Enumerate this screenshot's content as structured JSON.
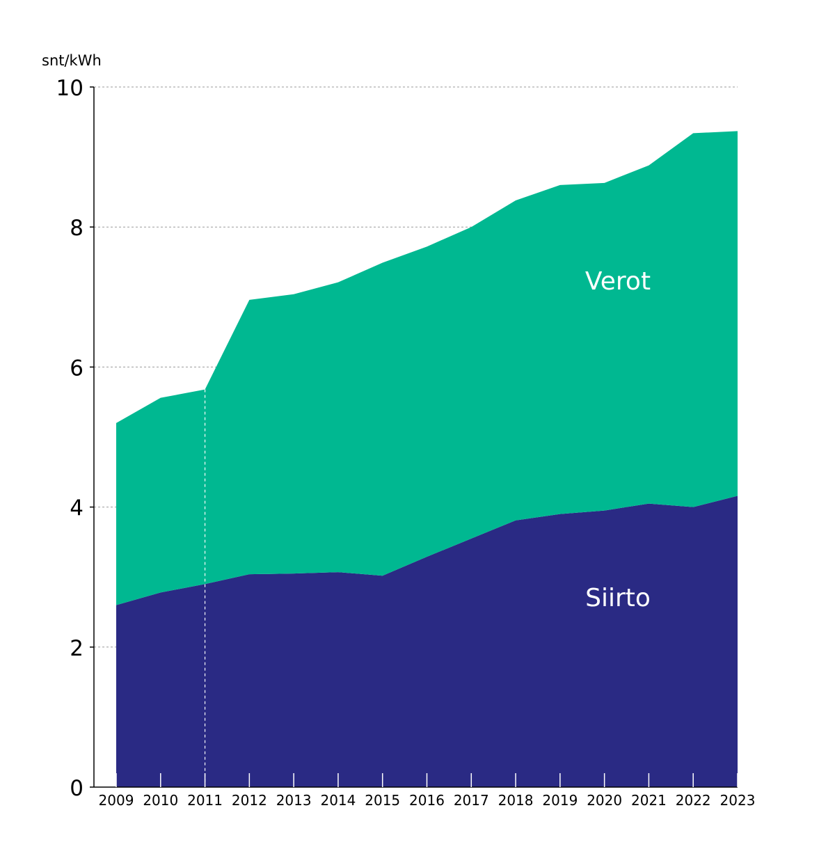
{
  "chart_data": {
    "type": "area",
    "stacked": true,
    "unit_label": "snt/kWh",
    "x": [
      "2009",
      "2010",
      "2011",
      "2012",
      "2013",
      "2014",
      "2015",
      "2016",
      "2017",
      "2018",
      "2019",
      "2020",
      "2021",
      "2022",
      "2023"
    ],
    "series": [
      {
        "name": "Siirto",
        "color": "#2a2a84",
        "label_color": "#ffffff",
        "values": [
          2.6,
          2.78,
          2.9,
          3.04,
          3.05,
          3.07,
          3.02,
          3.29,
          3.55,
          3.81,
          3.9,
          3.95,
          4.05,
          4.0,
          4.16
        ]
      },
      {
        "name": "Verot",
        "color": "#00b891",
        "label_color": "#ffffff",
        "values": [
          2.6,
          2.78,
          2.78,
          3.92,
          3.99,
          4.14,
          4.47,
          4.43,
          4.45,
          4.57,
          4.7,
          4.68,
          4.83,
          5.34,
          5.21
        ]
      }
    ],
    "ylim": [
      0,
      10
    ],
    "yticks": [
      "0",
      "2",
      "4",
      "6",
      "8",
      "10"
    ],
    "ytick_values": [
      0,
      2,
      4,
      6,
      8,
      10
    ],
    "grid": {
      "y": true,
      "style": "dotted",
      "color": "#999999"
    },
    "annotations": [
      {
        "type": "vertical-dashed-line",
        "x": "2011",
        "color": "#ffffff"
      }
    ],
    "legend": "in-plot labels"
  }
}
